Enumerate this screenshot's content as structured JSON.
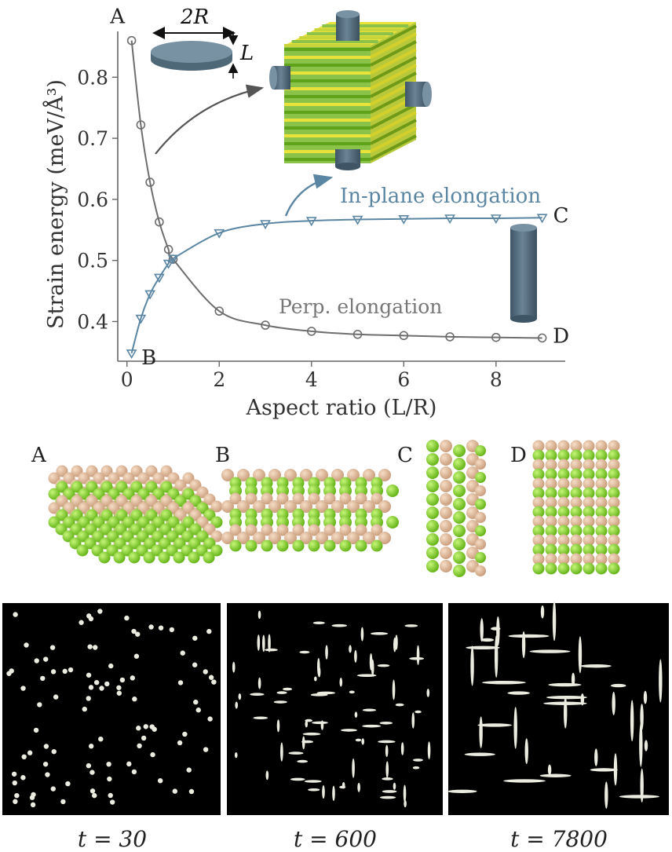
{
  "chart_data": {
    "type": "line",
    "xlabel": "Aspect ratio (L/R)",
    "ylabel": "Strain energy (meV/Å³)",
    "xlim": [
      -0.2,
      9.5
    ],
    "ylim": [
      0.335,
      0.875
    ],
    "xticks": [
      0,
      2,
      4,
      6,
      8
    ],
    "yticks": [
      0.4,
      0.5,
      0.6,
      0.7,
      0.8
    ],
    "grid": false,
    "series": [
      {
        "name": "Perp. elongation",
        "color": "#6e6e6e",
        "marker": "circle",
        "x": [
          0.1,
          0.3,
          0.5,
          0.7,
          0.9,
          1.0,
          2.0,
          3.0,
          4.0,
          5.0,
          6.0,
          7.0,
          8.0,
          9.0
        ],
        "y": [
          0.86,
          0.722,
          0.628,
          0.563,
          0.518,
          0.502,
          0.417,
          0.394,
          0.384,
          0.379,
          0.377,
          0.375,
          0.374,
          0.373
        ]
      },
      {
        "name": "In-plane elongation",
        "color": "#5b86a3",
        "marker": "triangle-down",
        "x": [
          0.1,
          0.3,
          0.5,
          0.7,
          0.9,
          1.0,
          2.0,
          3.0,
          4.0,
          5.0,
          6.0,
          7.0,
          8.0,
          9.0
        ],
        "y": [
          0.348,
          0.405,
          0.445,
          0.472,
          0.495,
          0.503,
          0.545,
          0.56,
          0.565,
          0.567,
          0.568,
          0.569,
          0.569,
          0.57
        ]
      }
    ],
    "point_labels": [
      {
        "text": "A",
        "x": 0.1,
        "y": 0.86
      },
      {
        "text": "B",
        "x": 0.1,
        "y": 0.348
      },
      {
        "text": "C",
        "x": 9.0,
        "y": 0.57
      },
      {
        "text": "D",
        "x": 9.0,
        "y": 0.373
      }
    ]
  },
  "insets": {
    "dim_2R": "2R",
    "dim_L": "L"
  },
  "structures": {
    "labels": [
      "A",
      "B",
      "C",
      "D"
    ]
  },
  "snapshots": {
    "labels": [
      "t = 30",
      "t = 600",
      "t = 7800"
    ]
  },
  "colors": {
    "atom_green": "#7ed321",
    "atom_tan": "#e2b896",
    "cylinder": "#536d7f",
    "cube_green": "#8bc34a",
    "cube_yellow": "#e8e23a"
  }
}
